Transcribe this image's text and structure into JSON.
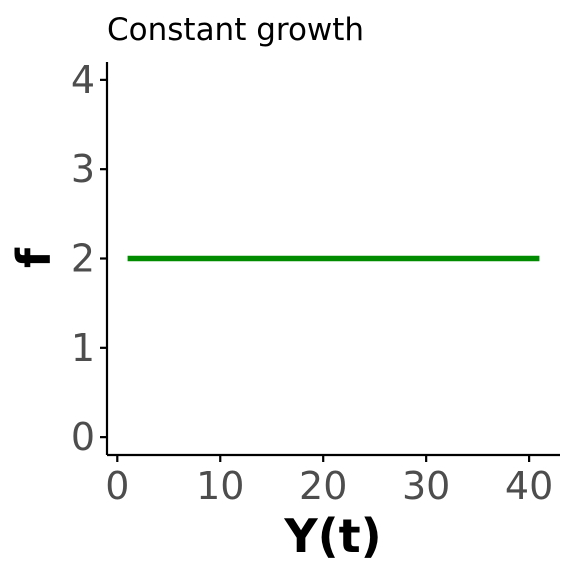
{
  "chart_data": {
    "type": "line",
    "title": "Constant growth",
    "xlabel": "Y(t)",
    "ylabel": "f",
    "xlim": [
      -1,
      43
    ],
    "ylim": [
      -0.2,
      4.2
    ],
    "xticks": [
      0,
      10,
      20,
      30,
      40
    ],
    "yticks": [
      0,
      1,
      2,
      3,
      4
    ],
    "xtick_labels": [
      "0",
      "10",
      "20",
      "30",
      "40"
    ],
    "ytick_labels": [
      "0",
      "1",
      "2",
      "3",
      "4"
    ],
    "grid": false,
    "series": [
      {
        "color": "#008b00",
        "x": [
          1,
          41
        ],
        "y": [
          2,
          2
        ]
      }
    ]
  }
}
